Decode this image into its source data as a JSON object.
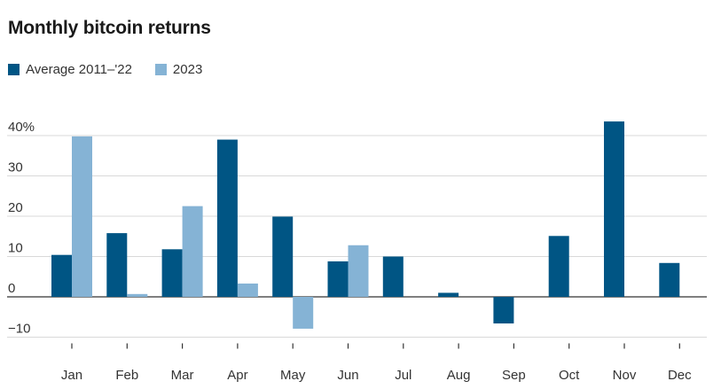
{
  "chart_data": {
    "type": "bar",
    "title": "Monthly bitcoin returns",
    "categories": [
      "Jan",
      "Feb",
      "Mar",
      "Apr",
      "May",
      "Jun",
      "Jul",
      "Aug",
      "Sep",
      "Oct",
      "Nov",
      "Dec"
    ],
    "series": [
      {
        "name": "Average 2011–'22",
        "color": "#005584",
        "values": [
          10.4,
          15.8,
          11.8,
          39.0,
          19.9,
          8.8,
          10.0,
          1.0,
          -6.6,
          15.1,
          43.5,
          8.4
        ]
      },
      {
        "name": "2023",
        "color": "#85b3d5",
        "values": [
          39.8,
          0.7,
          22.5,
          3.3,
          -7.9,
          12.8,
          null,
          null,
          null,
          null,
          null,
          null
        ]
      }
    ],
    "y_ticks": [
      {
        "value": 40,
        "label": "40%"
      },
      {
        "value": 30,
        "label": "30"
      },
      {
        "value": 20,
        "label": "20"
      },
      {
        "value": 10,
        "label": "10"
      },
      {
        "value": 0,
        "label": "0"
      },
      {
        "value": -10,
        "label": "−10"
      }
    ],
    "ylim": [
      -10,
      40
    ],
    "legend_position": "top-left",
    "grid": true
  }
}
